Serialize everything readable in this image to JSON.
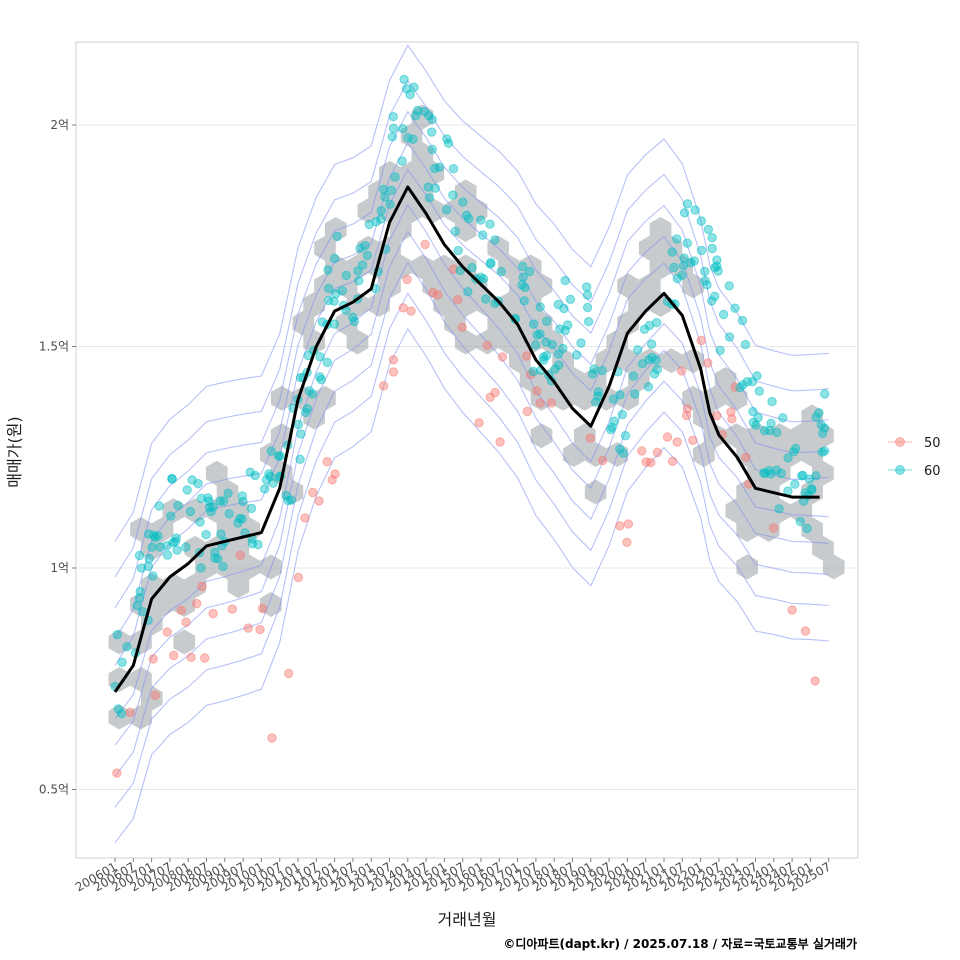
{
  "chart_data": {
    "type": "scatter",
    "title": "",
    "xlabel": "거래년월",
    "ylabel": "매매가(원)",
    "caption": "©디아파트(dapt.kr) / 2025.07.18 / 자료=국토교통부 실거래가",
    "xlim": [
      "2006-01",
      "2025-07"
    ],
    "ylim": [
      0.4,
      2.15
    ],
    "y_unit": "억",
    "y_ticks": [
      {
        "value": 0.5,
        "label": "0.5억"
      },
      {
        "value": 1.0,
        "label": "1억"
      },
      {
        "value": 1.5,
        "label": "1.5억"
      },
      {
        "value": 2.0,
        "label": "2억"
      }
    ],
    "x_tick_labels": [
      "200601",
      "200607",
      "200701",
      "200707",
      "200801",
      "200807",
      "200901",
      "200907",
      "201001",
      "201007",
      "201101",
      "201107",
      "201201",
      "201207",
      "201301",
      "201307",
      "201401",
      "201407",
      "201501",
      "201507",
      "201601",
      "201607",
      "201701",
      "201707",
      "201801",
      "201807",
      "201901",
      "201907",
      "202001",
      "202007",
      "202101",
      "202107",
      "202201",
      "202207",
      "202301",
      "202307",
      "202401",
      "202407",
      "202501",
      "202507"
    ],
    "grid": true,
    "legend_position": "right",
    "legend": [
      {
        "name": "50",
        "color": "#F8766D"
      },
      {
        "name": "60",
        "color": "#00BFC4"
      }
    ],
    "layers": [
      "hexbin density",
      "2d density contours",
      "points",
      "moving average line"
    ],
    "colors": {
      "hex": "#9aa0a6",
      "contour": "#7b8ef0",
      "trend": "#000000"
    },
    "trend_line": {
      "name": "moving average",
      "x": [
        "2006-01",
        "2006-07",
        "2007-01",
        "2007-07",
        "2008-01",
        "2008-07",
        "2009-01",
        "2009-07",
        "2010-01",
        "2010-07",
        "2011-01",
        "2011-07",
        "2012-01",
        "2012-07",
        "2013-01",
        "2013-07",
        "2014-01",
        "2014-07",
        "2015-01",
        "2015-07",
        "2016-01",
        "2016-07",
        "2017-01",
        "2017-07",
        "2018-01",
        "2018-07",
        "2019-01",
        "2019-07",
        "2020-01",
        "2020-07",
        "2021-01",
        "2021-07",
        "2022-01",
        "2022-04",
        "2022-07",
        "2023-01",
        "2023-07",
        "2024-01",
        "2024-07",
        "2025-01",
        "2025-04"
      ],
      "y": [
        0.72,
        0.78,
        0.93,
        0.98,
        1.01,
        1.05,
        1.06,
        1.07,
        1.08,
        1.18,
        1.38,
        1.5,
        1.58,
        1.6,
        1.63,
        1.78,
        1.86,
        1.8,
        1.73,
        1.68,
        1.64,
        1.6,
        1.55,
        1.47,
        1.42,
        1.36,
        1.32,
        1.41,
        1.53,
        1.58,
        1.62,
        1.57,
        1.45,
        1.35,
        1.3,
        1.25,
        1.18,
        1.17,
        1.16,
        1.16,
        1.16
      ]
    },
    "series": [
      {
        "name": "50",
        "x": [
          "2006-01",
          "2006-04",
          "2006-07",
          "2007-01",
          "2007-07",
          "2008-01",
          "2008-07",
          "2009-01",
          "2009-07",
          "2010-01",
          "2010-07",
          "2011-01",
          "2011-07",
          "2012-01",
          "2012-07",
          "2013-01",
          "2013-07",
          "2014-01",
          "2014-07",
          "2015-01",
          "2015-07",
          "2016-01",
          "2016-07",
          "2017-01",
          "2017-07",
          "2018-01",
          "2018-07",
          "2019-01",
          "2019-07",
          "2020-01",
          "2020-07",
          "2021-01",
          "2021-07",
          "2022-01",
          "2022-07",
          "2023-01",
          "2023-07",
          "2024-01",
          "2024-07",
          "2025-01"
        ],
        "y": [
          0.52,
          0.58,
          0.7,
          0.75,
          0.85,
          0.9,
          0.88,
          0.86,
          0.92,
          0.84,
          0.6,
          0.95,
          1.2,
          1.25,
          1.3,
          1.35,
          1.48,
          1.6,
          1.75,
          1.62,
          1.5,
          1.4,
          1.38,
          1.45,
          1.43,
          1.42,
          1.25,
          1.18,
          1.28,
          1.0,
          1.25,
          1.3,
          1.35,
          1.42,
          1.4,
          1.3,
          1.25,
          1.1,
          0.9,
          0.85
        ]
      },
      {
        "name": "60",
        "x": [
          "2006-01",
          "2006-04",
          "2006-07",
          "2006-10",
          "2007-01",
          "2007-04",
          "2007-07",
          "2008-01",
          "2008-07",
          "2009-01",
          "2009-07",
          "2010-01",
          "2010-07",
          "2011-01",
          "2011-07",
          "2012-01",
          "2012-07",
          "2013-01",
          "2013-07",
          "2014-01",
          "2014-07",
          "2015-01",
          "2015-07",
          "2016-01",
          "2016-07",
          "2017-01",
          "2017-07",
          "2018-01",
          "2018-07",
          "2019-01",
          "2019-07",
          "2020-01",
          "2020-07",
          "2021-01",
          "2021-07",
          "2022-01",
          "2022-07",
          "2023-01",
          "2023-07",
          "2024-01",
          "2024-07",
          "2025-01",
          "2025-04"
        ],
        "y": [
          0.75,
          0.78,
          0.88,
          0.95,
          1.0,
          1.05,
          1.1,
          1.15,
          1.08,
          1.12,
          1.18,
          1.15,
          1.2,
          1.3,
          1.45,
          1.65,
          1.62,
          1.7,
          1.85,
          2.05,
          1.95,
          1.9,
          1.75,
          1.7,
          1.62,
          1.58,
          1.55,
          1.52,
          1.6,
          1.5,
          1.4,
          1.35,
          1.45,
          1.6,
          1.7,
          1.75,
          1.6,
          1.5,
          1.35,
          1.25,
          1.2,
          1.15,
          1.35
        ]
      }
    ]
  }
}
